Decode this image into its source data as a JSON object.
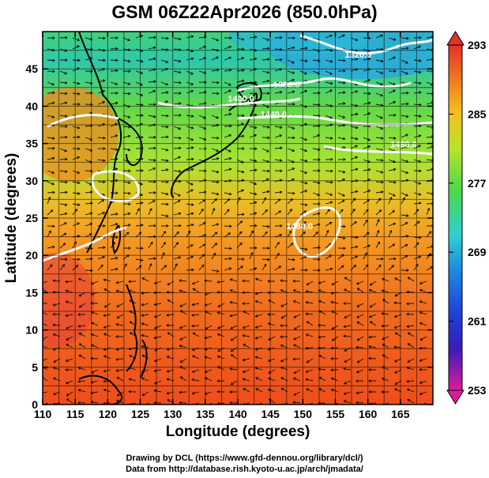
{
  "title": "GSM 06Z22Apr2026 (850.0hPa)",
  "x_axis": {
    "label": "Longitude (degrees)",
    "range": [
      110,
      170
    ],
    "ticks": [
      "110",
      "115",
      "120",
      "125",
      "130",
      "135",
      "140",
      "145",
      "150",
      "155",
      "160",
      "165"
    ]
  },
  "y_axis": {
    "label": "Latitude  (degrees)",
    "range": [
      0,
      50
    ],
    "ticks": [
      "0",
      "5",
      "10",
      "15",
      "20",
      "25",
      "30",
      "35",
      "40",
      "45"
    ]
  },
  "colorbar": {
    "labels": [
      "293",
      "285",
      "277",
      "269",
      "261",
      "253"
    ],
    "range": [
      253,
      293
    ],
    "colors": [
      "#e11a9a",
      "#2a1fc4",
      "#1e8be0",
      "#2fd0d0",
      "#5fdc3c",
      "#d7e81e",
      "#f5a020",
      "#f04a1a",
      "#e3232a"
    ]
  },
  "contour_labels": [
    {
      "text": "1320.0",
      "lon": 158.5,
      "lat": 46.5
    },
    {
      "text": "1380.0",
      "lon": 147.5,
      "lat": 42.5
    },
    {
      "text": "1400.0",
      "lon": 140.5,
      "lat": 40.6
    },
    {
      "text": "1440.0",
      "lon": 145.5,
      "lat": 38.5
    },
    {
      "text": "1480.0",
      "lon": 165.5,
      "lat": 34.5
    },
    {
      "text": "1480.0",
      "lon": 149.5,
      "lat": 23.5
    }
  ],
  "credits": [
    "Drawing by DCL (https://www.gfd-dennou.org/library/dcl/)",
    "Data from http://database.rish.kyoto-u.ac.jp/arch/jmadata/"
  ]
}
